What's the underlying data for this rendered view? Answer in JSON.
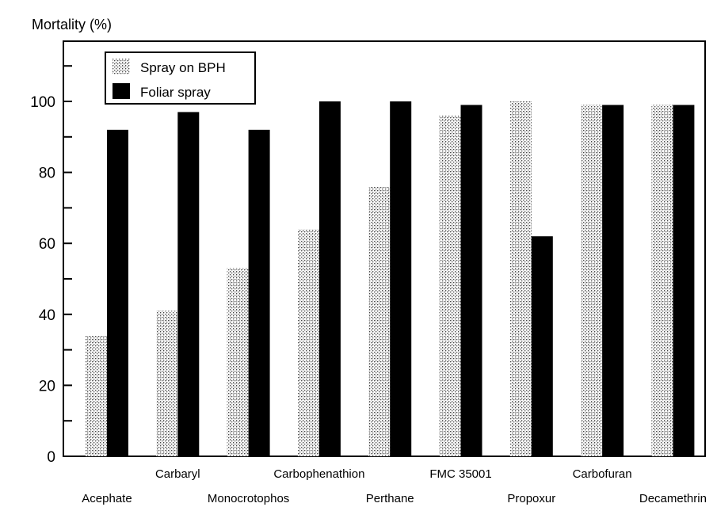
{
  "chart_data": {
    "type": "bar",
    "title": "",
    "ylabel": "Mortality (%)",
    "xlabel": "",
    "ylim": [
      0,
      120
    ],
    "yticks": [
      0,
      20,
      40,
      60,
      80,
      100
    ],
    "categories": [
      "Acephate",
      "Carbaryl",
      "Monocrotophos",
      "Carbophenathion",
      "Perthane",
      "FMC 35001",
      "Propoxur",
      "Carbofuran",
      "Decamethrin"
    ],
    "series": [
      {
        "name": "Spray on BPH",
        "values": [
          34,
          41,
          53,
          64,
          76,
          96,
          100,
          99,
          99
        ],
        "pattern": "stipple",
        "color": "#9a9a9a"
      },
      {
        "name": "Foliar spray",
        "values": [
          92,
          97,
          92,
          100,
          100,
          99,
          62,
          99,
          99
        ],
        "pattern": "solid",
        "color": "#000000"
      }
    ],
    "legend_position": "top-left",
    "grid": false
  }
}
